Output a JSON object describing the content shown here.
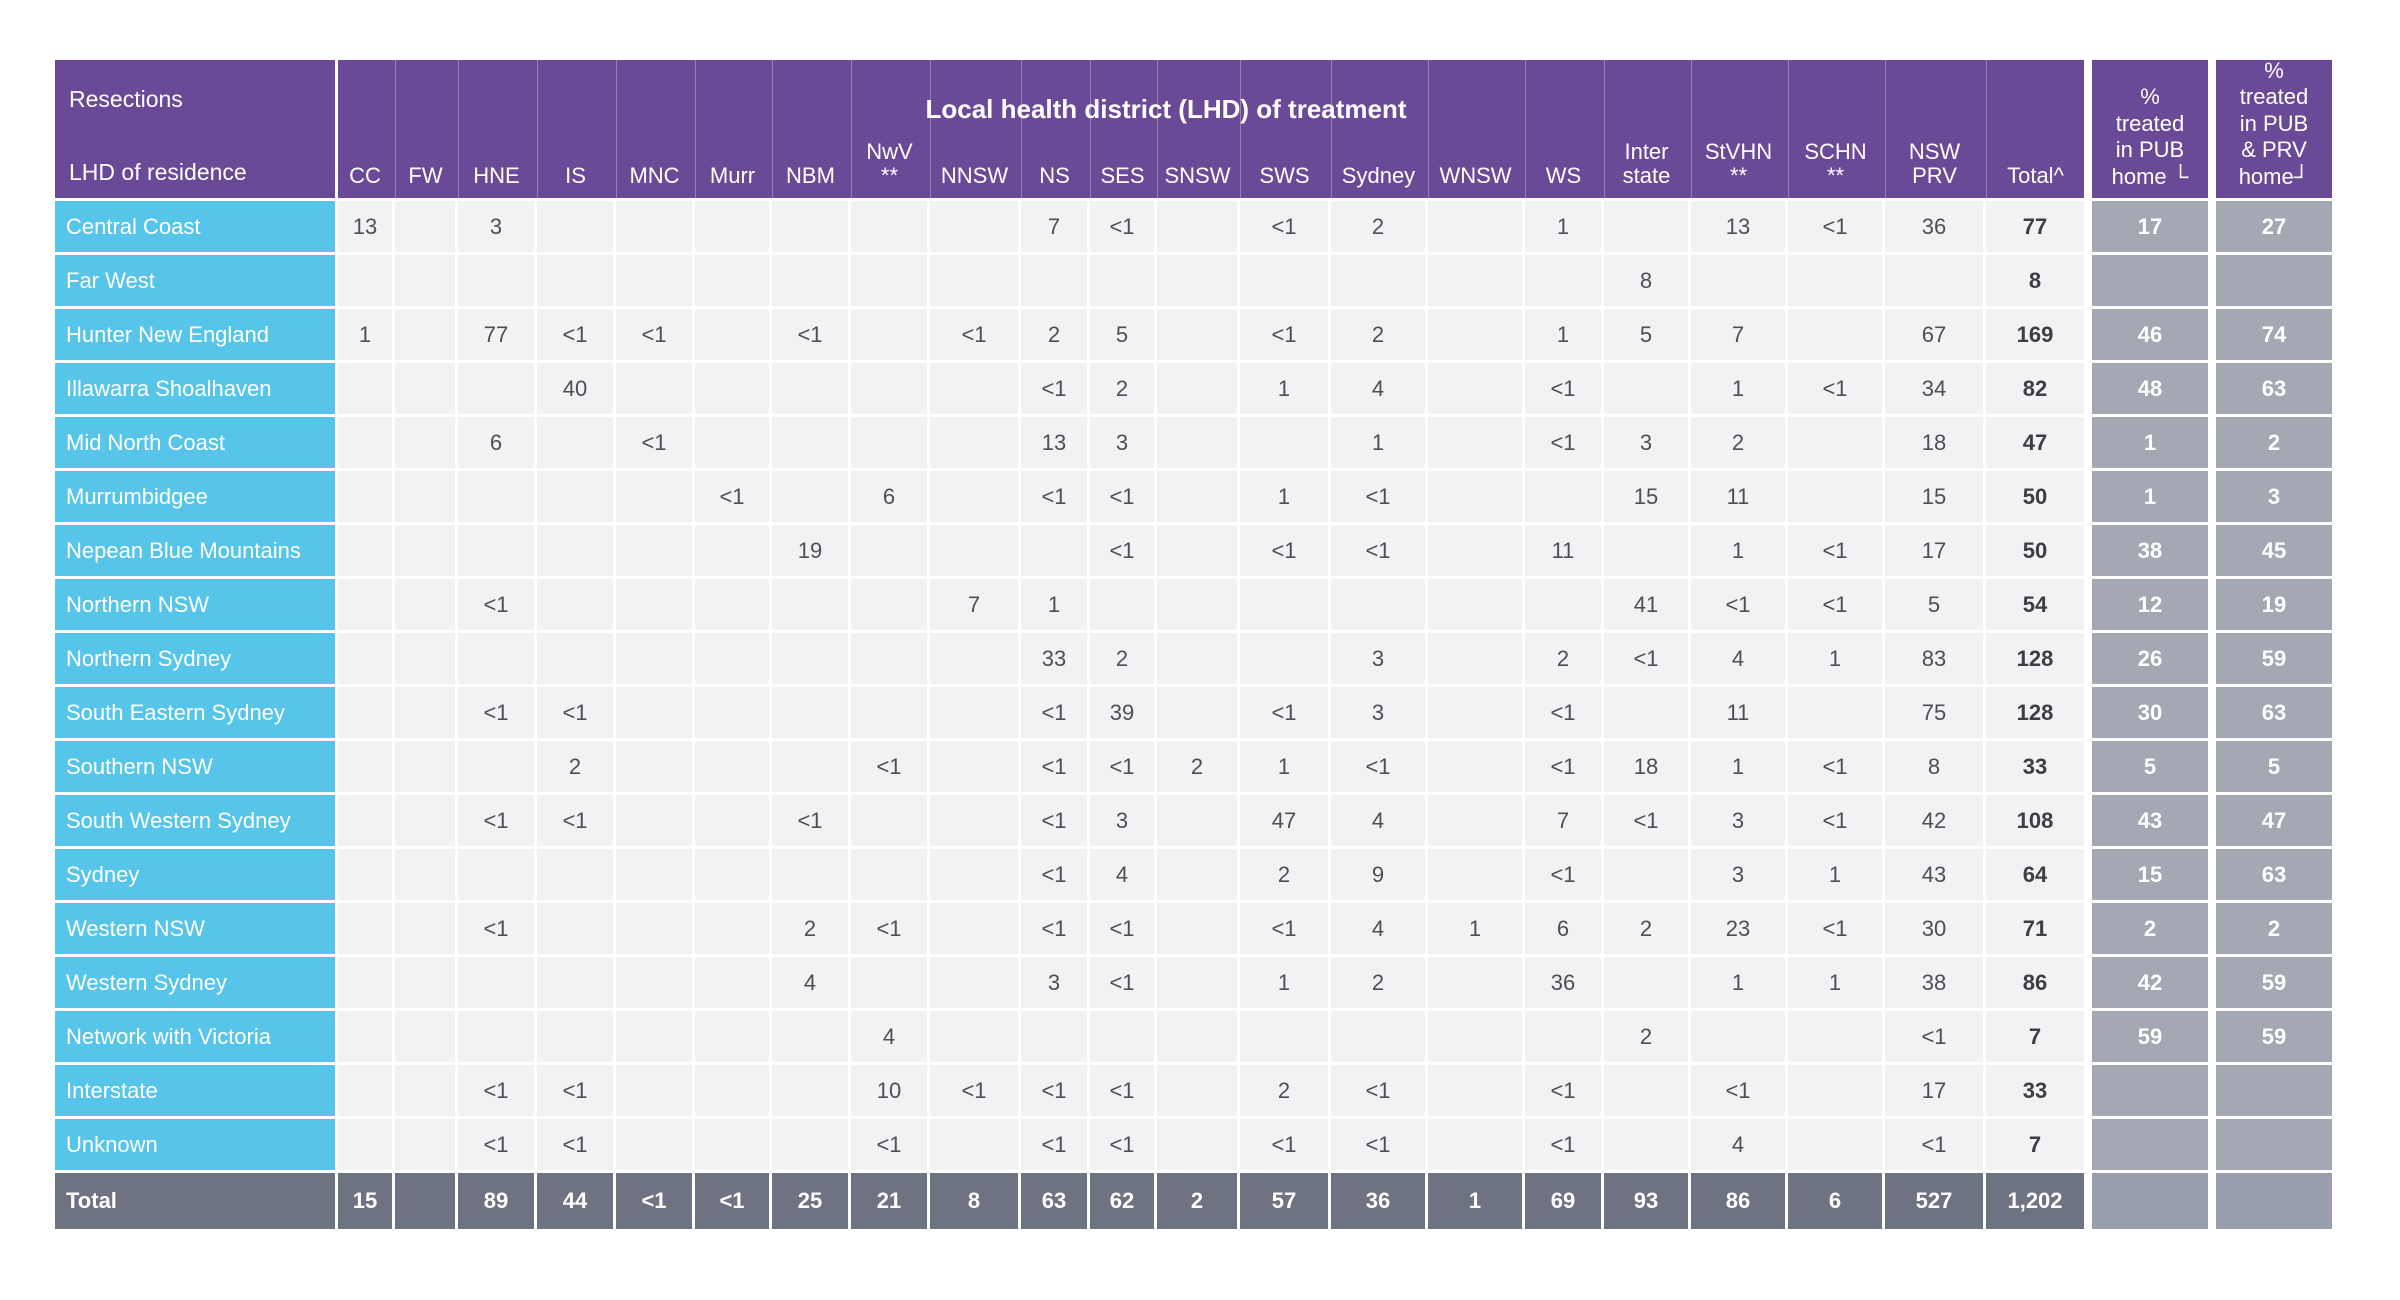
{
  "colors": {
    "header_purple": "#6a4a96",
    "row_label_cyan": "#57c5e9",
    "cell_bg": "#f1f2f3",
    "cell_text": "#4e4e53",
    "total_col_text": "#3e3e42",
    "total_row_bg": "#6d7380",
    "pct_cell_bg": "#a3a8b3",
    "total_row_pct_bg": "#989eac",
    "gridline": "#ffffff"
  },
  "chart_data": {
    "type": "table",
    "title": "Local health district (LHD) of treatment",
    "corner": {
      "measure": "Resections",
      "row_dimension": "LHD of residence"
    },
    "columns": [
      "CC",
      "FW",
      "HNE",
      "IS",
      "MNC",
      "Murr",
      "NBM",
      "NwV\n**",
      "NNSW",
      "NS",
      "SES",
      "SNSW",
      "SWS",
      "Sydney",
      "WNSW",
      "WS",
      "Inter\nstate",
      "StVHN\n**",
      "SCHN\n**",
      "NSW\nPRV",
      "Total^"
    ],
    "pct_columns": [
      "%\ntreated\nin PUB\nhome └",
      "%\ntreated\nin PUB\n& PRV\nhome┘"
    ],
    "rows": [
      {
        "label": "Central Coast",
        "cells": [
          "13",
          "",
          "3",
          "",
          "",
          "",
          "",
          "",
          "",
          "7",
          "<1",
          "",
          "<1",
          "2",
          "",
          "1",
          "",
          "13",
          "<1",
          "36"
        ],
        "total": "77",
        "pct": [
          "17",
          "27"
        ]
      },
      {
        "label": "Far West",
        "cells": [
          "",
          "",
          "",
          "",
          "",
          "",
          "",
          "",
          "",
          "",
          "",
          "",
          "",
          "",
          "",
          "",
          "8",
          "",
          "",
          ""
        ],
        "total": "8",
        "pct": [
          "",
          ""
        ]
      },
      {
        "label": "Hunter New England",
        "cells": [
          "1",
          "",
          "77",
          "<1",
          "<1",
          "",
          "<1",
          "",
          "<1",
          "2",
          "5",
          "",
          "<1",
          "2",
          "",
          "1",
          "5",
          "7",
          "",
          "67"
        ],
        "total": "169",
        "pct": [
          "46",
          "74"
        ]
      },
      {
        "label": "Illawarra Shoalhaven",
        "cells": [
          "",
          "",
          "",
          "40",
          "",
          "",
          "",
          "",
          "",
          "<1",
          "2",
          "",
          "1",
          "4",
          "",
          "<1",
          "",
          "1",
          "<1",
          "34"
        ],
        "total": "82",
        "pct": [
          "48",
          "63"
        ]
      },
      {
        "label": "Mid North Coast",
        "cells": [
          "",
          "",
          "6",
          "",
          "<1",
          "",
          "",
          "",
          "",
          "13",
          "3",
          "",
          "",
          "1",
          "",
          "<1",
          "3",
          "2",
          "",
          "18"
        ],
        "total": "47",
        "pct": [
          "1",
          "2"
        ]
      },
      {
        "label": "Murrumbidgee",
        "cells": [
          "",
          "",
          "",
          "",
          "",
          "<1",
          "",
          "6",
          "",
          "<1",
          "<1",
          "",
          "1",
          "<1",
          "",
          "",
          "15",
          "11",
          "",
          "15"
        ],
        "total": "50",
        "pct": [
          "1",
          "3"
        ]
      },
      {
        "label": "Nepean Blue Mountains",
        "cells": [
          "",
          "",
          "",
          "",
          "",
          "",
          "19",
          "",
          "",
          "",
          "<1",
          "",
          "<1",
          "<1",
          "",
          "11",
          "",
          "1",
          "<1",
          "17"
        ],
        "total": "50",
        "pct": [
          "38",
          "45"
        ]
      },
      {
        "label": "Northern NSW",
        "cells": [
          "",
          "",
          "<1",
          "",
          "",
          "",
          "",
          "",
          "7",
          "1",
          "",
          "",
          "",
          "",
          "",
          "",
          "41",
          "<1",
          "<1",
          "5"
        ],
        "total": "54",
        "pct": [
          "12",
          "19"
        ]
      },
      {
        "label": "Northern Sydney",
        "cells": [
          "",
          "",
          "",
          "",
          "",
          "",
          "",
          "",
          "",
          "33",
          "2",
          "",
          "",
          "3",
          "",
          "2",
          "<1",
          "4",
          "1",
          "83"
        ],
        "total": "128",
        "pct": [
          "26",
          "59"
        ]
      },
      {
        "label": "South Eastern Sydney",
        "cells": [
          "",
          "",
          "<1",
          "<1",
          "",
          "",
          "",
          "",
          "",
          "<1",
          "39",
          "",
          "<1",
          "3",
          "",
          "<1",
          "",
          "11",
          "",
          "75"
        ],
        "total": "128",
        "pct": [
          "30",
          "63"
        ]
      },
      {
        "label": "Southern NSW",
        "cells": [
          "",
          "",
          "",
          "2",
          "",
          "",
          "",
          "<1",
          "",
          "<1",
          "<1",
          "2",
          "1",
          "<1",
          "",
          "<1",
          "18",
          "1",
          "<1",
          "8"
        ],
        "total": "33",
        "pct": [
          "5",
          "5"
        ]
      },
      {
        "label": "South Western Sydney",
        "cells": [
          "",
          "",
          "<1",
          "<1",
          "",
          "",
          "<1",
          "",
          "",
          "<1",
          "3",
          "",
          "47",
          "4",
          "",
          "7",
          "<1",
          "3",
          "<1",
          "42"
        ],
        "total": "108",
        "pct": [
          "43",
          "47"
        ]
      },
      {
        "label": "Sydney",
        "cells": [
          "",
          "",
          "",
          "",
          "",
          "",
          "",
          "",
          "",
          "<1",
          "4",
          "",
          "2",
          "9",
          "",
          "<1",
          "",
          "3",
          "1",
          "43"
        ],
        "total": "64",
        "pct": [
          "15",
          "63"
        ]
      },
      {
        "label": "Western NSW",
        "cells": [
          "",
          "",
          "<1",
          "",
          "",
          "",
          "2",
          "<1",
          "",
          "<1",
          "<1",
          "",
          "<1",
          "4",
          "1",
          "6",
          "2",
          "23",
          "<1",
          "30"
        ],
        "total": "71",
        "pct": [
          "2",
          "2"
        ]
      },
      {
        "label": "Western Sydney",
        "cells": [
          "",
          "",
          "",
          "",
          "",
          "",
          "4",
          "",
          "",
          "3",
          "<1",
          "",
          "1",
          "2",
          "",
          "36",
          "",
          "1",
          "1",
          "38"
        ],
        "total": "86",
        "pct": [
          "42",
          "59"
        ]
      },
      {
        "label": "Network with Victoria",
        "cells": [
          "",
          "",
          "",
          "",
          "",
          "",
          "",
          "4",
          "",
          "",
          "",
          "",
          "",
          "",
          "",
          "",
          "2",
          "",
          "",
          "<1"
        ],
        "total": "7",
        "pct": [
          "59",
          "59"
        ]
      },
      {
        "label": "Interstate",
        "cells": [
          "",
          "",
          "<1",
          "<1",
          "",
          "",
          "",
          "10",
          "<1",
          "<1",
          "<1",
          "",
          "2",
          "<1",
          "",
          "<1",
          "",
          "<1",
          "",
          "17"
        ],
        "total": "33",
        "pct": [
          "",
          ""
        ]
      },
      {
        "label": "Unknown",
        "cells": [
          "",
          "",
          "<1",
          "<1",
          "",
          "",
          "",
          "<1",
          "",
          "<1",
          "<1",
          "",
          "<1",
          "<1",
          "",
          "<1",
          "",
          "4",
          "",
          "<1"
        ],
        "total": "7",
        "pct": [
          "",
          ""
        ]
      }
    ],
    "total_row": {
      "label": "Total",
      "cells": [
        "15",
        "",
        "89",
        "44",
        "<1",
        "<1",
        "25",
        "21",
        "8",
        "63",
        "62",
        "2",
        "57",
        "36",
        "1",
        "69",
        "93",
        "86",
        "6",
        "527"
      ],
      "total": "1,202",
      "pct": [
        "",
        ""
      ]
    }
  }
}
